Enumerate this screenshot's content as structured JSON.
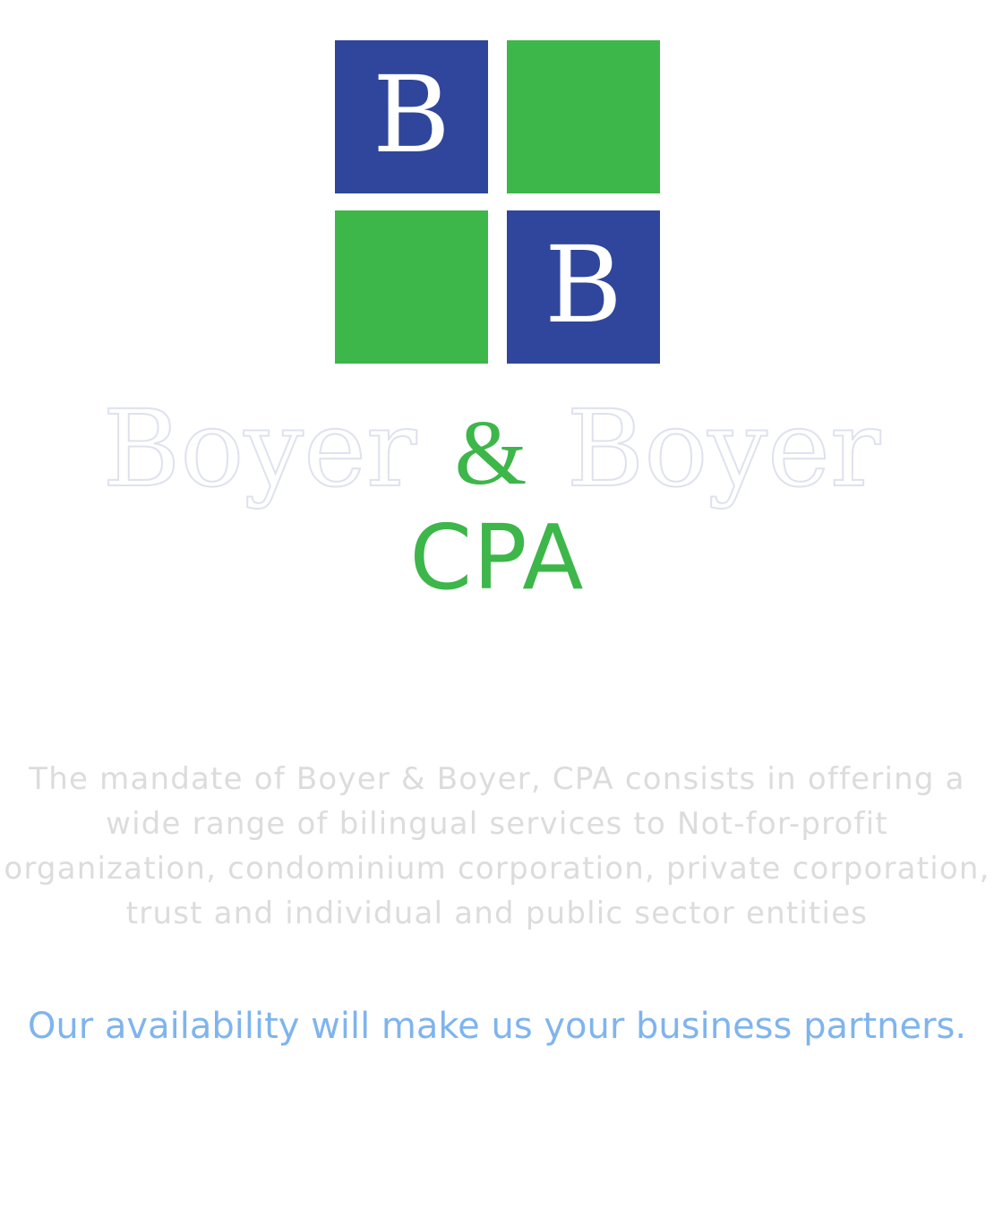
{
  "colors": {
    "brand_blue": "#2f469c",
    "brand_green": "#3db64a",
    "outline_gray": "#dfe2ee",
    "body_text": "#dcdcdc",
    "tagline_blue": "#7fb4ee",
    "background": "#ffffff"
  },
  "logo": {
    "tiles": [
      {
        "position": "top-left",
        "color": "#2f469c",
        "letter": "B"
      },
      {
        "position": "top-right",
        "color": "#3db64a",
        "letter": ""
      },
      {
        "position": "bottom-left",
        "color": "#3db64a",
        "letter": ""
      },
      {
        "position": "bottom-right",
        "color": "#2f469c",
        "letter": "B"
      }
    ]
  },
  "brand": {
    "name_left": "Boyer",
    "ampersand": "&",
    "name_right": "Boyer",
    "suffix": "CPA"
  },
  "mandate": {
    "lines": [
      "The mandate of Boyer & Boyer, CPA consists in offering a",
      "wide range of bilingual services to Not-for-profit",
      "organization, condominium corporation, private corporation,",
      "trust and individual and public sector entities"
    ]
  },
  "tagline": "Our availability will make us your business partners."
}
